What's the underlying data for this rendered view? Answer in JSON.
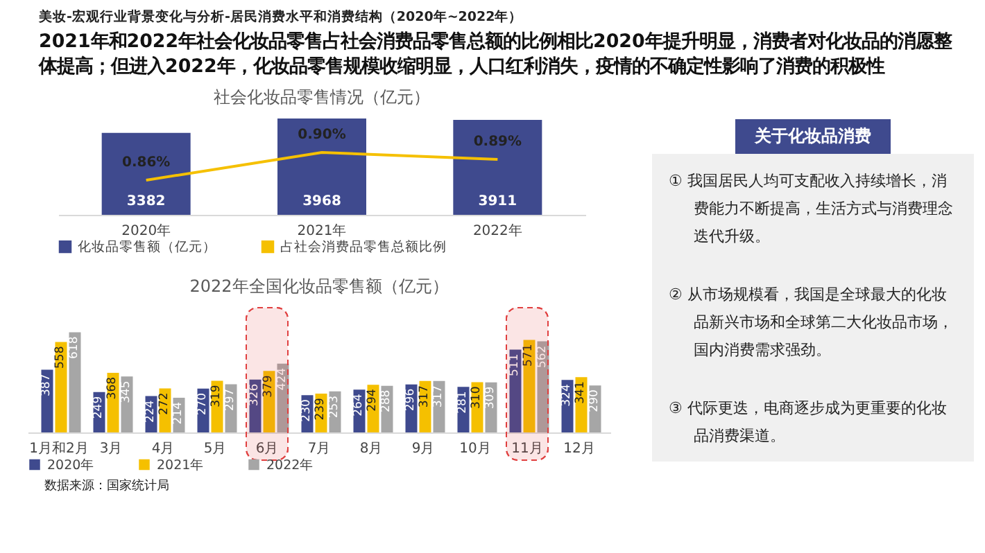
{
  "chart_data": [
    {
      "type": "bar",
      "title": "社会化妆品零售情况（亿元）",
      "annotations": [
        "美妆-宏观行业背景变化与分析-居民消费水平和消费结构（2020年~2022年）",
        "2021年和2022年社会化妆品零售占社会消费品零售总额的比例相比2020年提升明显，消费者对化妆品的消愿整体提高；但进入2022年，化妆品零售规模收缩明显，人口红利消失，疫情的不确定性影响了消费的积极性"
      ],
      "categories": [
        "2020年",
        "2021年",
        "2022年"
      ],
      "series": [
        {
          "name": "化妆品零售额（亿元）",
          "color": "#3f4a8e",
          "values": [
            3382,
            3968,
            3911
          ],
          "value_labels": [
            "3382",
            "3968",
            "3911"
          ]
        },
        {
          "name": "占社会消费品零售总额比例",
          "type": "line",
          "axis": "y2",
          "color": "#f5c000",
          "values": [
            0.86,
            0.9,
            0.89
          ],
          "value_labels": [
            "0.86%",
            "0.90%",
            "0.89%"
          ]
        }
      ],
      "legend": "bottom",
      "tick_labels": "x"
    },
    {
      "type": "bar",
      "title": "2022年全国化妆品零售额（亿元）",
      "annotations": [
        "数据来源：国家统计局"
      ],
      "categories": [
        "1月和2月",
        "3月",
        "4月",
        "5月",
        "6月",
        "7月",
        "8月",
        "9月",
        "10月",
        "11月",
        "12月"
      ],
      "series": [
        {
          "name": "2020年",
          "color": "#3f4a8e",
          "values": [
            387,
            249,
            224,
            270,
            326,
            230,
            264,
            296,
            281,
            511,
            324
          ]
        },
        {
          "name": "2021年",
          "color": "#f5c000",
          "values": [
            558,
            368,
            272,
            319,
            379,
            239,
            294,
            317,
            310,
            571,
            341
          ]
        },
        {
          "name": "2022年",
          "color": "#a6a6a6",
          "values": [
            618,
            345,
            214,
            297,
            424,
            253,
            288,
            317,
            309,
            562,
            290
          ]
        }
      ],
      "data_labels": true,
      "legend": "bottom",
      "tick_labels": "x",
      "bands": [
        {
          "axis": "x",
          "from": "6月",
          "to": "6月",
          "color": "#e04040"
        },
        {
          "axis": "x",
          "from": "11月",
          "to": "11月",
          "color": "#e04040"
        }
      ]
    },
    {
      "type": "other",
      "title": "关于化妆品消费",
      "annotations": [
        "① 我国居民人均可支配收入持续增长，消费能力不断提高，生活方式与消费理念迭代升级。",
        "② 从市场规模看，我国是全球最大的化妆品新兴市场和全球第二大化妆品市场，国内消费需求强劲。",
        "③ 代际更迭，电商逐步成为更重要的化妆品消费渠道。"
      ]
    }
  ]
}
